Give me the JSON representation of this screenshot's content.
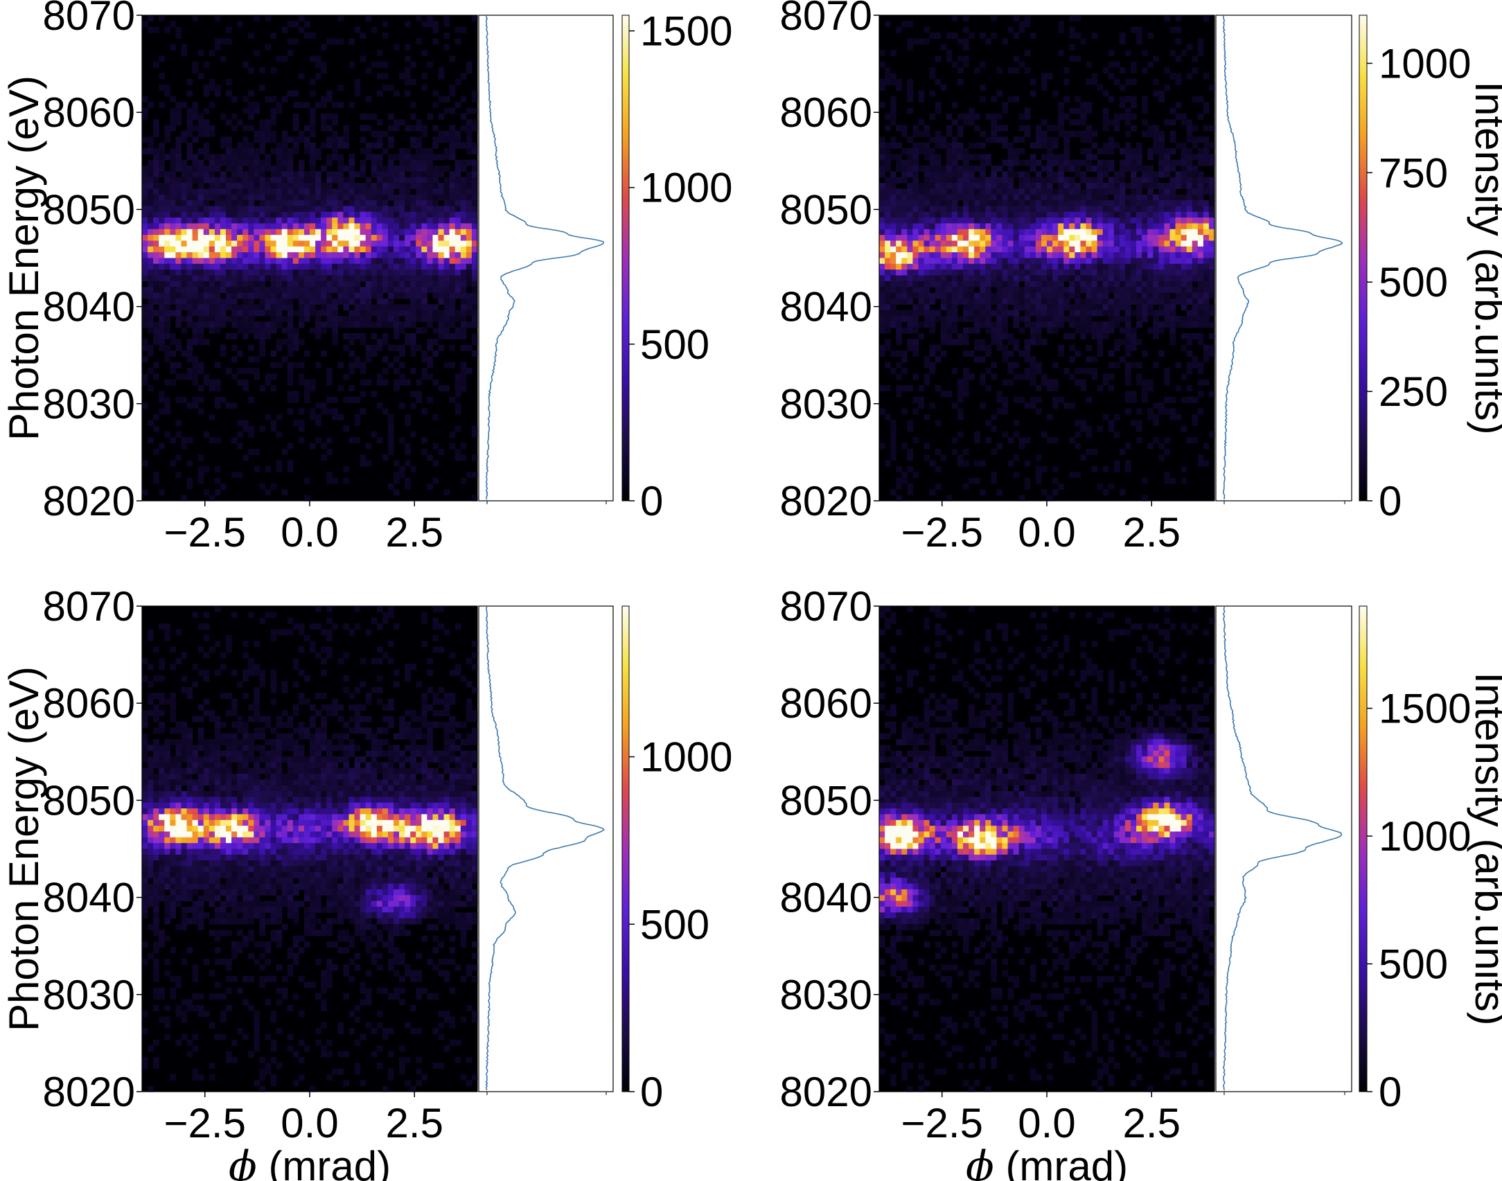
{
  "figure": {
    "y_label": "Photon Energy (eV)",
    "x_label_symbol": "ϕ",
    "x_label_unit": " (mrad)",
    "colorbar_label": "Intensity (arb.units)",
    "colormap": [
      "#000004",
      "#1d0c4a",
      "#3a10a8",
      "#6020d8",
      "#a030b8",
      "#e04a4a",
      "#f4a020",
      "#f8e040",
      "#fcfdf0"
    ]
  },
  "chart_data": [
    {
      "type": "heatmap",
      "panel": "top-left",
      "xlim": [
        -4.0,
        4.0
      ],
      "ylim": [
        8020,
        8070
      ],
      "x_ticks": [
        "−2.5",
        "0.0",
        "2.5"
      ],
      "x_tick_values": [
        -2.5,
        0.0,
        2.5
      ],
      "y_ticks": [
        "8020",
        "8030",
        "8040",
        "8050",
        "8060",
        "8070"
      ],
      "y_tick_values": [
        8020,
        8030,
        8040,
        8050,
        8060,
        8070
      ],
      "colorbar": {
        "min": 0,
        "max": 1550,
        "ticks": [
          "0",
          "500",
          "1000",
          "1500"
        ],
        "tick_values": [
          0,
          500,
          1000,
          1500
        ]
      },
      "show_ylabel": true,
      "show_xlabel": false,
      "show_cbar_label": false,
      "main_peak_eV": 8046.5,
      "hot_spots": [
        {
          "phi": -3.3,
          "E": 8046.5,
          "I": 1.0
        },
        {
          "phi": -2.3,
          "E": 8046.5,
          "I": 0.8
        },
        {
          "phi": -0.5,
          "E": 8046.5,
          "I": 1.0
        },
        {
          "phi": 0.9,
          "E": 8047.5,
          "I": 1.0
        },
        {
          "phi": 3.3,
          "E": 8046.5,
          "I": 0.85
        }
      ],
      "profile": {
        "E": [
          8020,
          8030,
          8036,
          8039,
          8040.5,
          8041.5,
          8043,
          8044.5,
          8045.5,
          8046.6,
          8047.5,
          8048.5,
          8050,
          8052,
          8056,
          8060,
          8065,
          8070
        ],
        "I": [
          0.02,
          0.04,
          0.1,
          0.2,
          0.25,
          0.2,
          0.14,
          0.4,
          0.8,
          1.0,
          0.7,
          0.35,
          0.18,
          0.14,
          0.1,
          0.05,
          0.03,
          0.02
        ]
      }
    },
    {
      "type": "heatmap",
      "panel": "top-right",
      "xlim": [
        -4.0,
        4.0
      ],
      "ylim": [
        8020,
        8070
      ],
      "x_ticks": [
        "−2.5",
        "0.0",
        "2.5"
      ],
      "x_tick_values": [
        -2.5,
        0.0,
        2.5
      ],
      "y_ticks": [
        "8020",
        "8030",
        "8040",
        "8050",
        "8060",
        "8070"
      ],
      "y_tick_values": [
        8020,
        8030,
        8040,
        8050,
        8060,
        8070
      ],
      "colorbar": {
        "min": 0,
        "max": 1110,
        "ticks": [
          "0",
          "250",
          "500",
          "750",
          "1000"
        ],
        "tick_values": [
          0,
          250,
          500,
          750,
          1000
        ]
      },
      "show_ylabel": false,
      "show_xlabel": false,
      "show_cbar_label": true,
      "main_peak_eV": 8046.5,
      "hot_spots": [
        {
          "phi": -3.6,
          "E": 8045.5,
          "I": 0.85
        },
        {
          "phi": -1.8,
          "E": 8046.5,
          "I": 0.8
        },
        {
          "phi": 0.7,
          "E": 8047,
          "I": 0.9
        },
        {
          "phi": 3.5,
          "E": 8047.5,
          "I": 0.75
        }
      ],
      "profile": {
        "E": [
          8020,
          8030,
          8036,
          8039,
          8040.5,
          8041.5,
          8043,
          8044.5,
          8045.5,
          8046.6,
          8047.5,
          8048.5,
          8050,
          8052,
          8056,
          8060,
          8065,
          8070
        ],
        "I": [
          0.02,
          0.04,
          0.1,
          0.18,
          0.22,
          0.18,
          0.14,
          0.4,
          0.8,
          1.0,
          0.75,
          0.4,
          0.2,
          0.16,
          0.12,
          0.05,
          0.03,
          0.02
        ]
      }
    },
    {
      "type": "heatmap",
      "panel": "bottom-left",
      "xlim": [
        -4.0,
        4.0
      ],
      "ylim": [
        8020,
        8070
      ],
      "x_ticks": [
        "−2.5",
        "0.0",
        "2.5"
      ],
      "x_tick_values": [
        -2.5,
        0.0,
        2.5
      ],
      "y_ticks": [
        "8020",
        "8030",
        "8040",
        "8050",
        "8060",
        "8070"
      ],
      "y_tick_values": [
        8020,
        8030,
        8040,
        8050,
        8060,
        8070
      ],
      "colorbar": {
        "min": 0,
        "max": 1450,
        "ticks": [
          "0",
          "500",
          "1000"
        ],
        "tick_values": [
          0,
          500,
          1000
        ]
      },
      "show_ylabel": true,
      "show_xlabel": true,
      "show_cbar_label": false,
      "main_peak_eV": 8047,
      "hot_spots": [
        {
          "phi": -3.2,
          "E": 8047.5,
          "I": 0.9
        },
        {
          "phi": -1.8,
          "E": 8047,
          "I": 0.9
        },
        {
          "phi": 1.5,
          "E": 8047.5,
          "I": 1.0
        },
        {
          "phi": 3.0,
          "E": 8047,
          "I": 1.0
        },
        {
          "phi": 2.0,
          "E": 8039.5,
          "I": 0.35
        }
      ],
      "profile": {
        "E": [
          8020,
          8030,
          8035,
          8037,
          8038.5,
          8040,
          8041.5,
          8043,
          8044.5,
          8046,
          8047,
          8048,
          8049.5,
          8052,
          8056,
          8060,
          8065,
          8070
        ],
        "I": [
          0.02,
          0.04,
          0.08,
          0.18,
          0.26,
          0.2,
          0.14,
          0.2,
          0.5,
          0.85,
          1.0,
          0.75,
          0.35,
          0.16,
          0.12,
          0.06,
          0.03,
          0.02
        ]
      }
    },
    {
      "type": "heatmap",
      "panel": "bottom-right",
      "xlim": [
        -4.0,
        4.0
      ],
      "ylim": [
        8020,
        8070
      ],
      "x_ticks": [
        "−2.5",
        "0.0",
        "2.5"
      ],
      "x_tick_values": [
        -2.5,
        0.0,
        2.5
      ],
      "y_ticks": [
        "8020",
        "8030",
        "8040",
        "8050",
        "8060",
        "8070"
      ],
      "y_tick_values": [
        8020,
        8030,
        8040,
        8050,
        8060,
        8070
      ],
      "colorbar": {
        "min": 0,
        "max": 1900,
        "ticks": [
          "0",
          "500",
          "1000",
          "1500"
        ],
        "tick_values": [
          0,
          500,
          1000,
          1500
        ]
      },
      "show_ylabel": false,
      "show_xlabel": true,
      "show_cbar_label": true,
      "main_peak_eV": 8046.5,
      "hot_spots": [
        {
          "phi": -3.5,
          "E": 8046.5,
          "I": 1.0
        },
        {
          "phi": -1.6,
          "E": 8046,
          "I": 1.0
        },
        {
          "phi": 2.8,
          "E": 8048,
          "I": 1.0
        },
        {
          "phi": -3.7,
          "E": 8040,
          "I": 0.6
        },
        {
          "phi": 2.7,
          "E": 8054.5,
          "I": 0.5
        }
      ],
      "profile": {
        "E": [
          8020,
          8030,
          8035,
          8038,
          8040,
          8042,
          8043.5,
          8045,
          8046.5,
          8047.5,
          8049,
          8051,
          8053,
          8055,
          8058,
          8062,
          8066,
          8070
        ],
        "I": [
          0.02,
          0.04,
          0.08,
          0.14,
          0.2,
          0.18,
          0.3,
          0.7,
          1.0,
          0.8,
          0.38,
          0.24,
          0.2,
          0.16,
          0.1,
          0.05,
          0.03,
          0.02
        ]
      }
    }
  ]
}
